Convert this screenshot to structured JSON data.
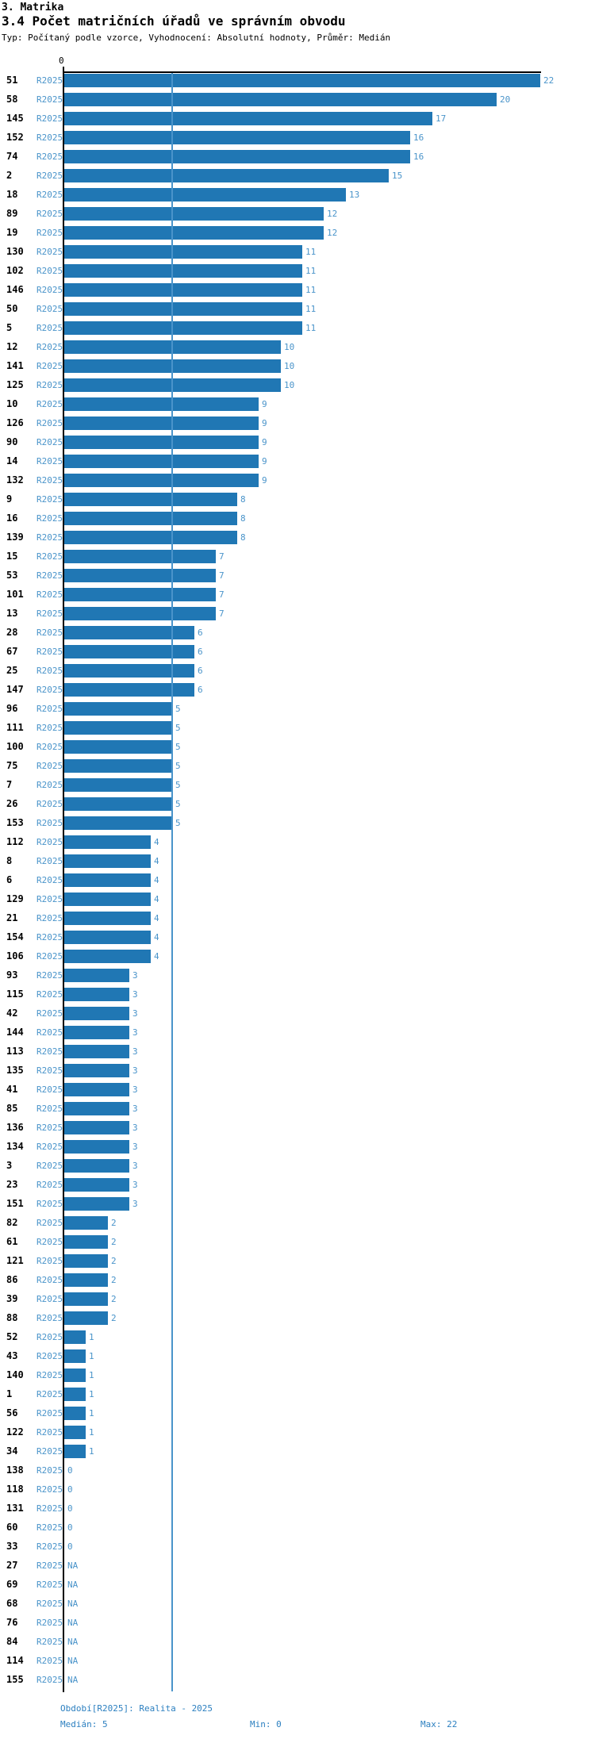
{
  "header": {
    "title": "3. Matrika",
    "subtitle": "3.4 Počet matričních úřadů ve správním obvodu",
    "meta": "Typ: Počítaný podle vzorce, Vyhodnocení: Absolutní hodnoty, Průměr: Medián"
  },
  "axis": {
    "zero_label": "0"
  },
  "footer": {
    "period": "Období[R2025]: Realita - 2025",
    "median": "Medián: 5",
    "min": "Min: 0",
    "max": "Max: 22"
  },
  "colors": {
    "bar": "#2077b4",
    "row_label": "#4a94ca",
    "value_label": "#4a94ca",
    "median_line": "#4a94ca",
    "footer_text": "#2d80c0",
    "axis": "#000000"
  },
  "chart_data": {
    "type": "bar",
    "orientation": "horizontal",
    "title": "3.4 Počet matričních úřadů ve správním obvodu",
    "series_label": "R2025",
    "xlabel": "",
    "ylabel": "",
    "xlim": [
      0,
      22
    ],
    "grid": false,
    "median": 5,
    "min": 0,
    "max": 22,
    "na_text": "NA",
    "rows": [
      {
        "id": "51",
        "value": 22
      },
      {
        "id": "58",
        "value": 20
      },
      {
        "id": "145",
        "value": 17
      },
      {
        "id": "152",
        "value": 16
      },
      {
        "id": "74",
        "value": 16
      },
      {
        "id": "2",
        "value": 15
      },
      {
        "id": "18",
        "value": 13
      },
      {
        "id": "89",
        "value": 12
      },
      {
        "id": "19",
        "value": 12
      },
      {
        "id": "130",
        "value": 11
      },
      {
        "id": "102",
        "value": 11
      },
      {
        "id": "146",
        "value": 11
      },
      {
        "id": "50",
        "value": 11
      },
      {
        "id": "5",
        "value": 11
      },
      {
        "id": "12",
        "value": 10
      },
      {
        "id": "141",
        "value": 10
      },
      {
        "id": "125",
        "value": 10
      },
      {
        "id": "10",
        "value": 9
      },
      {
        "id": "126",
        "value": 9
      },
      {
        "id": "90",
        "value": 9
      },
      {
        "id": "14",
        "value": 9
      },
      {
        "id": "132",
        "value": 9
      },
      {
        "id": "9",
        "value": 8
      },
      {
        "id": "16",
        "value": 8
      },
      {
        "id": "139",
        "value": 8
      },
      {
        "id": "15",
        "value": 7
      },
      {
        "id": "53",
        "value": 7
      },
      {
        "id": "101",
        "value": 7
      },
      {
        "id": "13",
        "value": 7
      },
      {
        "id": "28",
        "value": 6
      },
      {
        "id": "67",
        "value": 6
      },
      {
        "id": "25",
        "value": 6
      },
      {
        "id": "147",
        "value": 6
      },
      {
        "id": "96",
        "value": 5
      },
      {
        "id": "111",
        "value": 5
      },
      {
        "id": "100",
        "value": 5
      },
      {
        "id": "75",
        "value": 5
      },
      {
        "id": "7",
        "value": 5
      },
      {
        "id": "26",
        "value": 5
      },
      {
        "id": "153",
        "value": 5
      },
      {
        "id": "112",
        "value": 4
      },
      {
        "id": "8",
        "value": 4
      },
      {
        "id": "6",
        "value": 4
      },
      {
        "id": "129",
        "value": 4
      },
      {
        "id": "21",
        "value": 4
      },
      {
        "id": "154",
        "value": 4
      },
      {
        "id": "106",
        "value": 4
      },
      {
        "id": "93",
        "value": 3
      },
      {
        "id": "115",
        "value": 3
      },
      {
        "id": "42",
        "value": 3
      },
      {
        "id": "144",
        "value": 3
      },
      {
        "id": "113",
        "value": 3
      },
      {
        "id": "135",
        "value": 3
      },
      {
        "id": "41",
        "value": 3
      },
      {
        "id": "85",
        "value": 3
      },
      {
        "id": "136",
        "value": 3
      },
      {
        "id": "134",
        "value": 3
      },
      {
        "id": "3",
        "value": 3
      },
      {
        "id": "23",
        "value": 3
      },
      {
        "id": "151",
        "value": 3
      },
      {
        "id": "82",
        "value": 2
      },
      {
        "id": "61",
        "value": 2
      },
      {
        "id": "121",
        "value": 2
      },
      {
        "id": "86",
        "value": 2
      },
      {
        "id": "39",
        "value": 2
      },
      {
        "id": "88",
        "value": 2
      },
      {
        "id": "52",
        "value": 1
      },
      {
        "id": "43",
        "value": 1
      },
      {
        "id": "140",
        "value": 1
      },
      {
        "id": "1",
        "value": 1
      },
      {
        "id": "56",
        "value": 1
      },
      {
        "id": "122",
        "value": 1
      },
      {
        "id": "34",
        "value": 1
      },
      {
        "id": "138",
        "value": 0
      },
      {
        "id": "118",
        "value": 0
      },
      {
        "id": "131",
        "value": 0
      },
      {
        "id": "60",
        "value": 0
      },
      {
        "id": "33",
        "value": 0
      },
      {
        "id": "27",
        "value": "NA"
      },
      {
        "id": "69",
        "value": "NA"
      },
      {
        "id": "68",
        "value": "NA"
      },
      {
        "id": "76",
        "value": "NA"
      },
      {
        "id": "84",
        "value": "NA"
      },
      {
        "id": "114",
        "value": "NA"
      },
      {
        "id": "155",
        "value": "NA"
      }
    ]
  }
}
